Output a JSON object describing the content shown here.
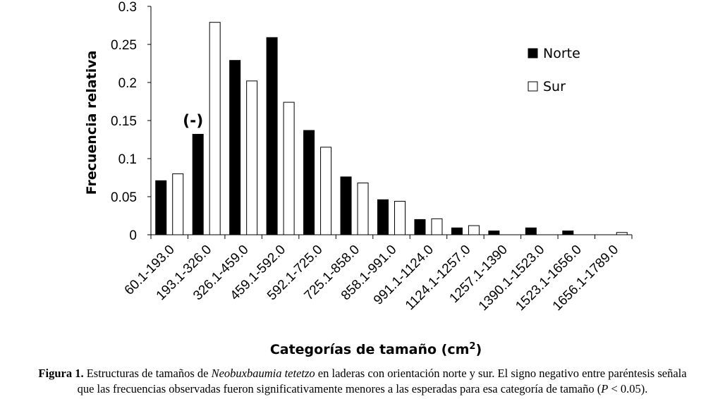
{
  "chart_data": {
    "type": "bar",
    "categories": [
      "60.1-193.0",
      "193.1-326.0",
      "326.1-459.0",
      "459.1-592.0",
      "592.1-725.0",
      "725.1-858.0",
      "858.1-991.0",
      "991.1-1124.0",
      "1124.1-1257.0",
      "1257.1-1390",
      "1390.1-1523.0",
      "1523.1-1656.0",
      "1656.1-1789.0"
    ],
    "series": [
      {
        "name": "Norte",
        "color": "#000000",
        "values": [
          0.071,
          0.132,
          0.229,
          0.259,
          0.137,
          0.076,
          0.046,
          0.02,
          0.009,
          0.005,
          0.009,
          0.005,
          0.0
        ]
      },
      {
        "name": "Sur",
        "color": "#ffffff",
        "values": [
          0.08,
          0.279,
          0.202,
          0.174,
          0.115,
          0.068,
          0.044,
          0.021,
          0.012,
          0.0,
          0.0,
          0.0,
          0.003
        ]
      }
    ],
    "yticks": [
      "0",
      "0.05",
      "0.1",
      "0.15",
      "0.2",
      "0.25",
      "0.3"
    ],
    "ylim": [
      0,
      0.3
    ],
    "ylabel": "Frecuencia relativa",
    "xlabel_main": "Categorías de tamaño (cm",
    "xlabel_sup": "2",
    "xlabel_end": ")",
    "annotation": {
      "text": "(-)",
      "category": "193.1-326.0",
      "value": 0.132
    },
    "legend_position": "top-right",
    "grid": false
  },
  "caption": {
    "label": "Figura 1.",
    "part1": " Estructuras de tamaños de ",
    "species": "Neobuxbaumia tetetzo",
    "part2": " en laderas con orientación norte y sur. El signo negativo entre paréntesis señala",
    "line2a": "que las frecuencias observadas fueron significativamente menores a las esperadas para esa categoría de tamaño (",
    "p_symbol": "P",
    "line2b": " < 0.05)."
  }
}
